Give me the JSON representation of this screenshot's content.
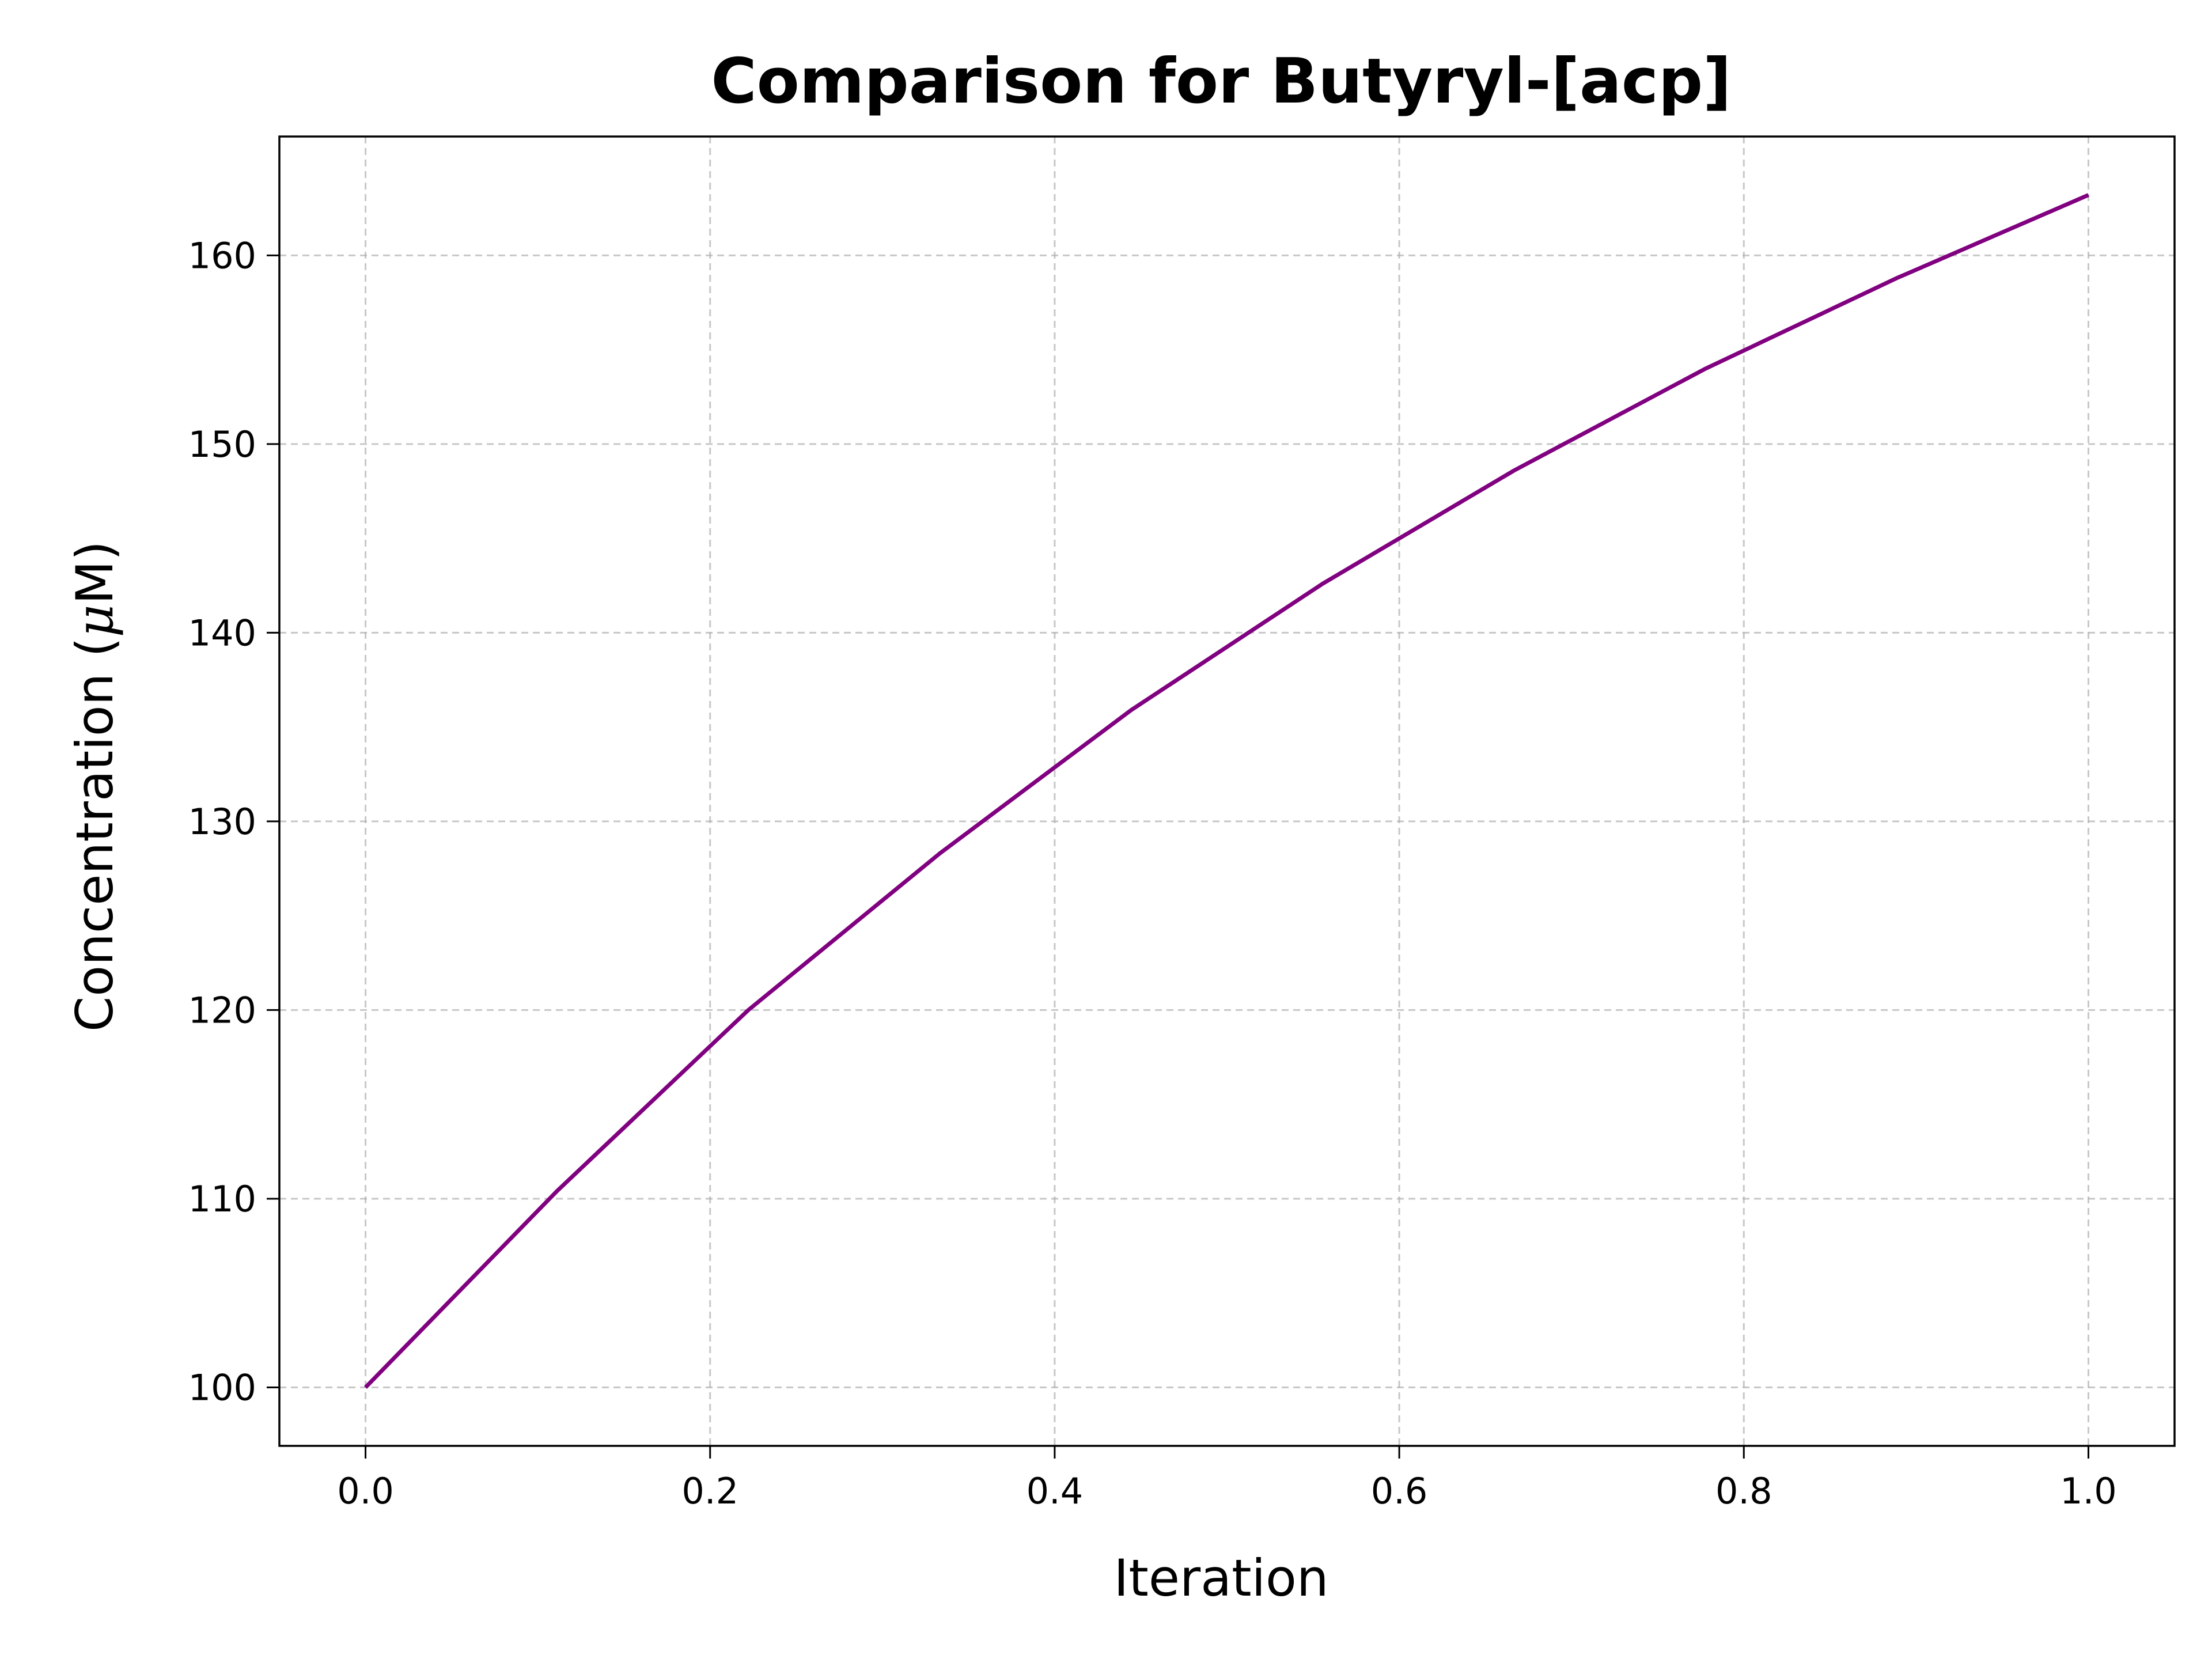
{
  "chart_data": {
    "type": "line",
    "title": "Comparison for Butyryl-[acp]",
    "xlabel": "Iteration",
    "ylabel_prefix": "Concentration (",
    "ylabel_mu": "μ",
    "ylabel_suffix": "M)",
    "xlim": [
      -0.05,
      1.05
    ],
    "ylim": [
      96.9,
      166.3
    ],
    "xticks": [
      0.0,
      0.2,
      0.4,
      0.6,
      0.8,
      1.0
    ],
    "xtick_labels": [
      "0.0",
      "0.2",
      "0.4",
      "0.6",
      "0.8",
      "1.0"
    ],
    "yticks": [
      100,
      110,
      120,
      130,
      140,
      150,
      160
    ],
    "ytick_labels": [
      "100",
      "110",
      "120",
      "130",
      "140",
      "150",
      "160"
    ],
    "grid": true,
    "legend": "none",
    "series": [
      {
        "color": "#800080",
        "x": [
          0.0,
          0.1111,
          0.2222,
          0.3333,
          0.4444,
          0.5556,
          0.6667,
          0.7778,
          0.8889,
          1.0
        ],
        "y": [
          100.0,
          110.4,
          120.0,
          128.3,
          135.9,
          142.6,
          148.6,
          154.0,
          158.8,
          163.2
        ]
      }
    ]
  }
}
